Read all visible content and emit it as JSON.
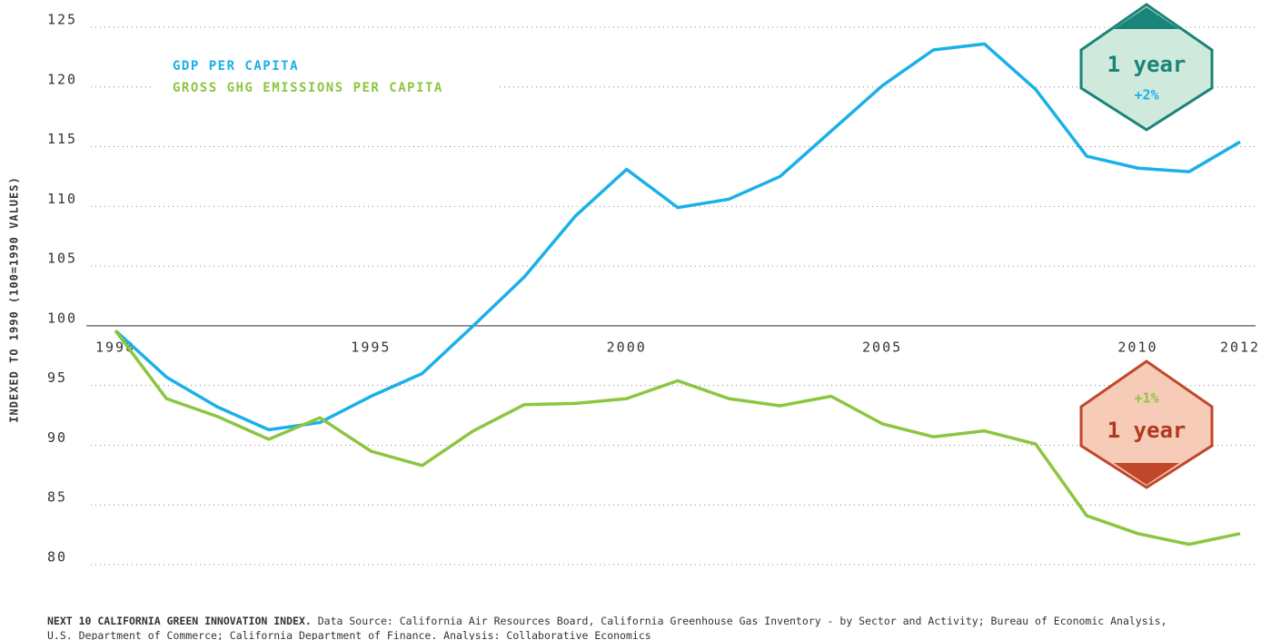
{
  "chart_data": {
    "type": "line",
    "y_label": "INDEXED TO 1990 (100=1990 VALUES)",
    "x": [
      1990,
      1991,
      1992,
      1993,
      1994,
      1995,
      1996,
      1997,
      1998,
      1999,
      2000,
      2001,
      2002,
      2003,
      2004,
      2005,
      2006,
      2007,
      2008,
      2009,
      2010,
      2011,
      2012
    ],
    "series": [
      {
        "name": "GDP PER CAPITA",
        "color": "#1ab0e8",
        "values": [
          99.6,
          95.7,
          93.2,
          91.3,
          91.9,
          94.1,
          96.0,
          100.0,
          104.1,
          109.2,
          113.1,
          109.9,
          110.6,
          112.5,
          116.3,
          120.1,
          123.1,
          123.6,
          119.8,
          114.2,
          113.2,
          112.9,
          115.4
        ]
      },
      {
        "name": "GROSS GHG EMISSIONS PER CAPITA",
        "color": "#8cc63f",
        "values": [
          99.6,
          93.9,
          92.4,
          90.5,
          92.3,
          89.5,
          88.3,
          91.2,
          93.4,
          93.5,
          93.9,
          95.4,
          93.9,
          93.3,
          94.1,
          91.8,
          90.7,
          91.2,
          90.1,
          84.1,
          82.6,
          81.7,
          82.6
        ]
      }
    ],
    "xlim": [
      1990,
      2012
    ],
    "xticks": [
      1990,
      1995,
      2000,
      2005,
      2010,
      2012
    ],
    "ylim": [
      80,
      125
    ],
    "yticks": [
      80,
      85,
      90,
      95,
      100,
      105,
      110,
      115,
      120,
      125
    ],
    "grid": true,
    "annotations": {
      "gdp_badge": {
        "period": "1 year",
        "change": "+2%"
      },
      "ghg_badge": {
        "period": "1 year",
        "change": "+1%"
      }
    }
  },
  "note": {
    "label": "NEXT 10 CALIFORNIA GREEN INNOVATION INDEX.",
    "lines": [
      "Data Source: California Air Resources Board, California Greenhouse Gas Inventory - by Sector and Activity; Bureau of Economic Analysis,",
      "U.S. Department of Commerce; California Department of Finance. Analysis: Collaborative Economics"
    ]
  }
}
